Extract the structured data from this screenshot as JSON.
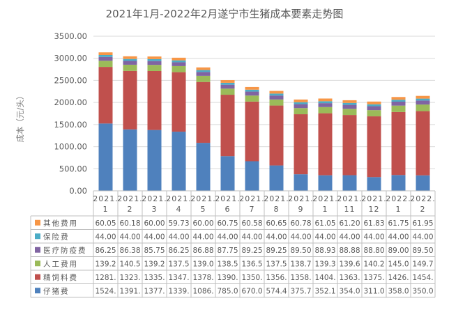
{
  "chart_data": {
    "type": "bar",
    "stacked": true,
    "title": "2021年1月-2022年2月遂宁市生猪成本要素走势图",
    "ylabel": "成本（元/头）",
    "ylim": [
      0,
      3500
    ],
    "yticks": [
      "0.00",
      "500.00",
      "1000.00",
      "1500.00",
      "2000.00",
      "2500.00",
      "3000.00",
      "3500.00"
    ],
    "grid": true,
    "legend": "table-bottom",
    "categories": [
      [
        "2021.",
        "1"
      ],
      [
        "2021.",
        "2"
      ],
      [
        "2021.",
        "3"
      ],
      [
        "2021.",
        "4"
      ],
      [
        "2021.",
        "5"
      ],
      [
        "2021.",
        "6"
      ],
      [
        "2021.",
        "7"
      ],
      [
        "2021.",
        "8"
      ],
      [
        "2021.",
        "9"
      ],
      [
        "2021.",
        "1"
      ],
      [
        "2021.",
        "11"
      ],
      [
        "2021.",
        "12"
      ],
      [
        "2022.",
        "1"
      ],
      [
        "2022.",
        "2"
      ]
    ],
    "series": [
      {
        "name": "仔猪费",
        "color": "#4f81bd",
        "values": [
          1524,
          1391,
          1377,
          1339,
          1086,
          785,
          670,
          574.4,
          375.7,
          352.1,
          354,
          311,
          358,
          350
        ],
        "labels": [
          "1524.",
          "1391.",
          "1377.",
          "1339.",
          "1086.",
          "785.0",
          "670.0",
          "574.4",
          "375.7",
          "352.1",
          "354.0",
          "311.0",
          "358.0",
          "350.0"
        ]
      },
      {
        "name": "精饲料费",
        "color": "#c0504d",
        "values": [
          1281,
          1323,
          1335,
          1347,
          1378,
          1390,
          1350,
          1356,
          1358,
          1404,
          1363,
          1375,
          1426,
          1454
        ],
        "labels": [
          "1281.",
          "1323.",
          "1335.",
          "1347.",
          "1378.",
          "1390.",
          "1350.",
          "1356.",
          "1358.",
          "1404.",
          "1363.",
          "1375.",
          "1426.",
          "1454."
        ]
      },
      {
        "name": "人工费用",
        "color": "#9bbb59",
        "values": [
          139.2,
          140.5,
          139.2,
          137.5,
          139.0,
          138.5,
          136.5,
          137.5,
          138.7,
          139.3,
          139.6,
          140.2,
          145.0,
          149.7
        ],
        "labels": [
          "139.2",
          "140.5",
          "139.2",
          "137.5",
          "139.0",
          "138.5",
          "136.5",
          "137.5",
          "138.7",
          "139.3",
          "139.6",
          "140.2",
          "145.0",
          "149.7"
        ]
      },
      {
        "name": "医疗防疫费",
        "color": "#8064a2",
        "values": [
          86.25,
          86.38,
          85.75,
          86.25,
          86.88,
          87.75,
          89.25,
          89.25,
          89.5,
          88.93,
          88.88,
          88.8,
          89.0,
          89.5
        ],
        "labels": [
          "86.25",
          "86.38",
          "85.75",
          "86.25",
          "86.88",
          "87.75",
          "89.25",
          "89.25",
          "89.50",
          "88.93",
          "88.88",
          "88.80",
          "89.00",
          "89.50"
        ]
      },
      {
        "name": "保险费",
        "color": "#4bacc6",
        "values": [
          44,
          44,
          44,
          44,
          44,
          44,
          44,
          44,
          44,
          44,
          44,
          44,
          44,
          44
        ],
        "labels": [
          "44.00",
          "44.00",
          "44.00",
          "44.00",
          "44.00",
          "44.00",
          "44.00",
          "44.00",
          "44.00",
          "44.00",
          "44.00",
          "44.00",
          "44.00",
          "44.00"
        ]
      },
      {
        "name": "其他费用",
        "color": "#f79646",
        "values": [
          60.05,
          60.18,
          60.0,
          59.73,
          60.0,
          60.75,
          60.58,
          60.65,
          60.78,
          61.05,
          61.2,
          61.83,
          61.75,
          61.95
        ],
        "labels": [
          "60.05",
          "60.18",
          "60.00",
          "59.73",
          "60.00",
          "60.75",
          "60.58",
          "60.65",
          "60.78",
          "61.05",
          "61.20",
          "61.83",
          "61.75",
          "61.95"
        ]
      }
    ]
  }
}
